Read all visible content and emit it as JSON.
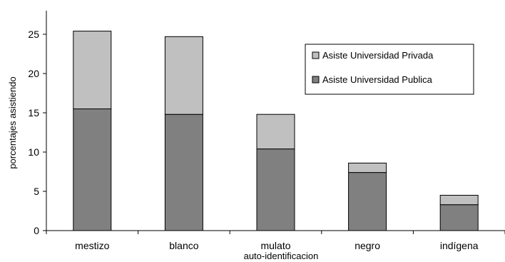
{
  "chart_data": {
    "type": "bar",
    "stacked": true,
    "categories": [
      "mestizo",
      "blanco",
      "mulato",
      "negro",
      "indígena"
    ],
    "series": [
      {
        "name": "Asiste Universidad Publica",
        "values": [
          15.5,
          14.8,
          10.4,
          7.4,
          3.3
        ],
        "color": "#808080"
      },
      {
        "name": "Asiste Universidad Privada",
        "values": [
          9.9,
          9.9,
          4.4,
          1.2,
          1.2
        ],
        "color": "#c0c0c0"
      }
    ],
    "xlabel": "auto-identificacion",
    "ylabel": "porcentajes asistiendo",
    "ylim": [
      0,
      28
    ],
    "yticks": [
      0,
      5,
      10,
      15,
      20,
      25
    ],
    "grid": false,
    "legend": {
      "position": "top-right",
      "order": [
        "Asiste Universidad Privada",
        "Asiste Universidad Publica"
      ]
    }
  }
}
